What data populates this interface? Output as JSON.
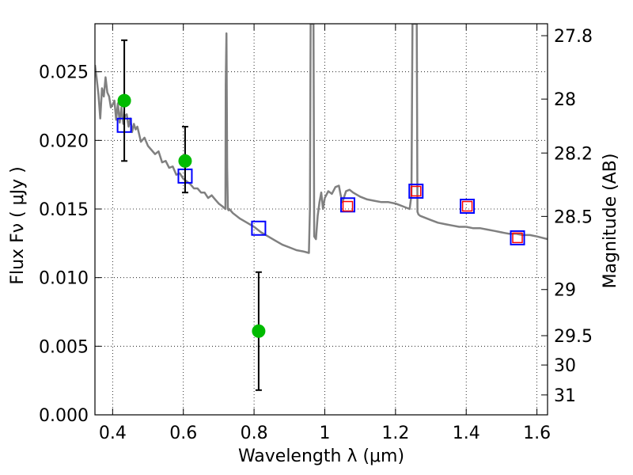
{
  "chart_data": {
    "type": "scatter",
    "xlabel": "Wavelength  λ (μm)",
    "ylabel_left": "Flux  Fν  ( μJy )",
    "ylabel_right": "Magnitude (AB)",
    "xlim": [
      0.35,
      1.63
    ],
    "ylim": [
      0.0,
      0.0285
    ],
    "x_ticks": [
      0.4,
      0.6,
      0.8,
      1.0,
      1.2,
      1.4,
      1.6
    ],
    "x_tick_labels": [
      "0.4",
      "0.6",
      "0.8",
      "1",
      "1.2",
      "1.4",
      "1.6"
    ],
    "y_ticks": [
      0.0,
      0.005,
      0.01,
      0.015,
      0.02,
      0.025
    ],
    "y_tick_labels": [
      "0.000",
      "0.005",
      "0.010",
      "0.015",
      "0.020",
      "0.025"
    ],
    "right_ticks": [
      {
        "label": "27.8",
        "flux": 0.02763
      },
      {
        "label": "28",
        "flux": 0.02301
      },
      {
        "label": "28.2",
        "flux": 0.01908
      },
      {
        "label": "28.5",
        "flux": 0.01446
      },
      {
        "label": "29",
        "flux": 0.00913
      },
      {
        "label": "29.5",
        "flux": 0.00577
      },
      {
        "label": "30",
        "flux": 0.00363
      },
      {
        "label": "31",
        "flux": 0.00145
      }
    ],
    "grid": true,
    "colors": {
      "model": "#808080",
      "observed": "#00bb00",
      "error_bar": "#000000",
      "blue_square": "#0000ff",
      "red_square": "#ff0000"
    },
    "series": [
      {
        "kind": "line",
        "x": [
          0.35,
          0.355,
          0.36,
          0.365,
          0.37,
          0.375,
          0.38,
          0.385,
          0.39,
          0.395,
          0.4,
          0.405,
          0.41,
          0.415,
          0.42,
          0.425,
          0.43,
          0.435,
          0.44,
          0.445,
          0.45,
          0.455,
          0.46,
          0.465,
          0.47,
          0.48,
          0.49,
          0.5,
          0.51,
          0.52,
          0.53,
          0.54,
          0.55,
          0.56,
          0.57,
          0.58,
          0.59,
          0.6,
          0.61,
          0.62,
          0.63,
          0.64,
          0.65,
          0.66,
          0.67,
          0.68,
          0.69,
          0.7,
          0.71,
          0.719,
          0.72,
          0.722,
          0.724,
          0.726,
          0.728,
          0.73,
          0.74,
          0.75,
          0.76,
          0.78,
          0.8,
          0.82,
          0.84,
          0.86,
          0.88,
          0.9,
          0.92,
          0.94,
          0.955,
          0.958,
          0.96,
          0.962,
          0.964,
          0.966,
          0.968,
          0.97,
          0.975,
          0.98,
          0.985,
          0.99,
          0.995,
          1.0,
          1.01,
          1.02,
          1.03,
          1.04,
          1.045,
          1.05,
          1.06,
          1.07,
          1.08,
          1.1,
          1.12,
          1.14,
          1.16,
          1.18,
          1.2,
          1.22,
          1.24,
          1.245,
          1.248,
          1.25,
          1.252,
          1.255,
          1.258,
          1.26,
          1.262,
          1.265,
          1.27,
          1.28,
          1.3,
          1.32,
          1.34,
          1.36,
          1.38,
          1.4,
          1.42,
          1.44,
          1.46,
          1.48,
          1.5,
          1.52,
          1.54,
          1.56,
          1.58,
          1.6,
          1.63
        ],
        "y": [
          0.0255,
          0.0245,
          0.0233,
          0.0216,
          0.0238,
          0.0232,
          0.0246,
          0.0235,
          0.0232,
          0.0224,
          0.0226,
          0.0229,
          0.0215,
          0.0227,
          0.0213,
          0.0224,
          0.0212,
          0.0218,
          0.0219,
          0.021,
          0.0216,
          0.0206,
          0.0212,
          0.0208,
          0.021,
          0.0199,
          0.0202,
          0.0196,
          0.0193,
          0.019,
          0.0192,
          0.0184,
          0.0185,
          0.018,
          0.0181,
          0.0175,
          0.0176,
          0.0172,
          0.017,
          0.0168,
          0.0165,
          0.0165,
          0.0162,
          0.0162,
          0.0158,
          0.016,
          0.0157,
          0.0154,
          0.0152,
          0.015,
          0.024,
          0.0278,
          0.018,
          0.015,
          0.0149,
          0.015,
          0.0147,
          0.0145,
          0.0143,
          0.014,
          0.0137,
          0.0133,
          0.013,
          0.0127,
          0.0124,
          0.0122,
          0.012,
          0.0119,
          0.0118,
          0.015,
          0.0285,
          0.0285,
          0.0285,
          0.0285,
          0.0285,
          0.013,
          0.0128,
          0.0145,
          0.0155,
          0.0162,
          0.015,
          0.0158,
          0.0163,
          0.0161,
          0.0166,
          0.0167,
          0.016,
          0.0155,
          0.0163,
          0.0164,
          0.0162,
          0.0159,
          0.0157,
          0.0156,
          0.0155,
          0.0155,
          0.0154,
          0.0152,
          0.015,
          0.016,
          0.0285,
          0.0285,
          0.0285,
          0.0285,
          0.0285,
          0.0285,
          0.0148,
          0.0146,
          0.0145,
          0.0144,
          0.0142,
          0.014,
          0.0139,
          0.0138,
          0.0137,
          0.0137,
          0.0136,
          0.0136,
          0.0135,
          0.0134,
          0.0133,
          0.0132,
          0.0132,
          0.0131,
          0.0131,
          0.013,
          0.0128
        ]
      },
      {
        "kind": "blue_squares",
        "x": [
          0.433,
          0.605,
          0.813,
          1.065,
          1.258,
          1.403,
          1.545
        ],
        "y": [
          0.0211,
          0.0174,
          0.0136,
          0.0153,
          0.0163,
          0.0152,
          0.0129
        ]
      },
      {
        "kind": "red_squares",
        "x": [
          1.065,
          1.258,
          1.403,
          1.545
        ],
        "y": [
          0.0152,
          0.0163,
          0.0152,
          0.0129
        ]
      },
      {
        "kind": "observed_points",
        "x": [
          0.433,
          0.605,
          0.813
        ],
        "y": [
          0.0229,
          0.0185,
          0.0061
        ],
        "y_lower": [
          0.0185,
          0.0162,
          0.0018
        ],
        "y_upper": [
          0.0273,
          0.021,
          0.0104
        ]
      }
    ]
  }
}
